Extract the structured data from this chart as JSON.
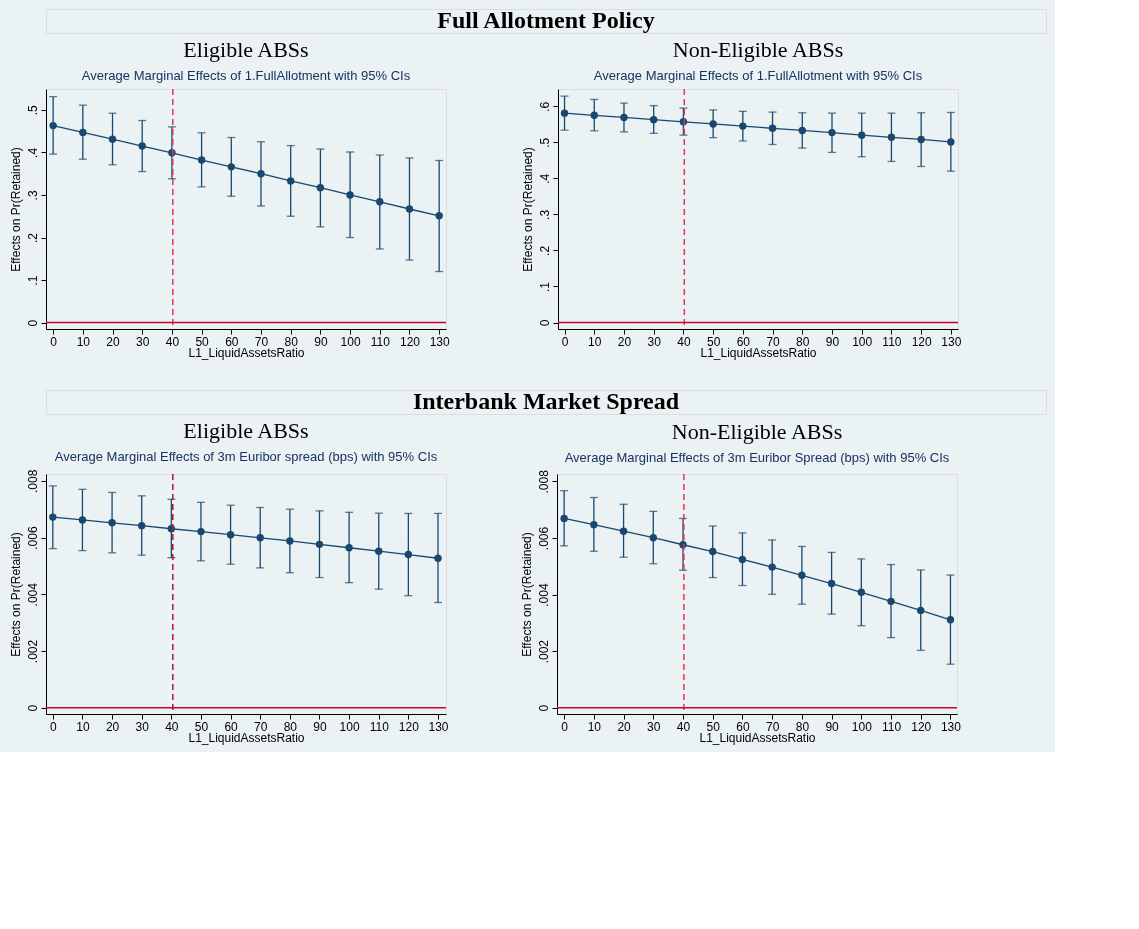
{
  "chart_data": [
    {
      "type": "line",
      "title": "Eligible ABSs",
      "subtitle": "Average Marginal Effects of 1.FullAllotment with 95% CIs",
      "annotations": [
        "Full Allotment Policy"
      ],
      "xlabel": "L1_LiquidAssetsRatio",
      "ylabel": "Effects on Pr(Retained)",
      "x": [
        0,
        10,
        20,
        30,
        40,
        50,
        60,
        70,
        80,
        90,
        100,
        110,
        120,
        130
      ],
      "series": [
        {
          "color": "#1a476f",
          "values": [
            0.463,
            0.447,
            0.431,
            0.415,
            0.399,
            0.382,
            0.366,
            0.35,
            0.333,
            0.317,
            0.3,
            0.284,
            0.267,
            0.251
          ],
          "errors": [
            [
              0.396,
              0.531
            ],
            [
              0.384,
              0.511
            ],
            [
              0.371,
              0.492
            ],
            [
              0.355,
              0.475
            ],
            [
              0.338,
              0.46
            ],
            [
              0.319,
              0.446
            ],
            [
              0.297,
              0.435
            ],
            [
              0.274,
              0.425
            ],
            [
              0.25,
              0.416
            ],
            [
              0.225,
              0.408
            ],
            [
              0.2,
              0.401
            ],
            [
              0.173,
              0.394
            ],
            [
              0.147,
              0.387
            ],
            [
              0.12,
              0.381
            ]
          ]
        }
      ],
      "xlim": [
        -2.4,
        132.3
      ],
      "xticks": [
        0,
        10,
        20,
        30,
        40,
        50,
        60,
        70,
        80,
        90,
        100,
        110,
        120,
        130
      ],
      "ylim": [
        -0.015,
        0.549
      ],
      "yticks": [
        {
          "value": 0,
          "label": "0"
        },
        {
          "value": 0.1,
          "label": ".1"
        },
        {
          "value": 0.2,
          "label": ".2"
        },
        {
          "value": 0.3,
          "label": ".3"
        },
        {
          "value": 0.4,
          "label": ".4"
        },
        {
          "value": 0.5,
          "label": ".5"
        }
      ],
      "ref_lines": [
        {
          "axis": "x",
          "value": 40.3,
          "color": "#e8335a",
          "line_style": "dashed"
        },
        {
          "axis": "y",
          "value": 0,
          "color": "#c10534",
          "line_style": "solid"
        }
      ],
      "grid": "y",
      "marker": "circle",
      "line_style": "solid"
    },
    {
      "type": "line",
      "title": "Non-Eligible ABSs",
      "subtitle": "Average Marginal Effects of 1.FullAllotment with 95% CIs",
      "xlabel": "L1_LiquidAssetsRatio",
      "ylabel": "Effects on Pr(Retained)",
      "x": [
        0,
        10,
        20,
        30,
        40,
        50,
        60,
        70,
        80,
        90,
        100,
        110,
        120,
        130
      ],
      "series": [
        {
          "color": "#1a476f",
          "values": [
            0.581,
            0.575,
            0.569,
            0.563,
            0.557,
            0.551,
            0.545,
            0.539,
            0.533,
            0.527,
            0.52,
            0.514,
            0.508,
            0.501
          ],
          "errors": [
            [
              0.534,
              0.628
            ],
            [
              0.532,
              0.619
            ],
            [
              0.529,
              0.609
            ],
            [
              0.525,
              0.602
            ],
            [
              0.52,
              0.595
            ],
            [
              0.513,
              0.59
            ],
            [
              0.504,
              0.586
            ],
            [
              0.494,
              0.584
            ],
            [
              0.484,
              0.582
            ],
            [
              0.472,
              0.581
            ],
            [
              0.46,
              0.581
            ],
            [
              0.447,
              0.581
            ],
            [
              0.433,
              0.582
            ],
            [
              0.42,
              0.583
            ]
          ]
        }
      ],
      "xlim": [
        -2.2,
        132.4
      ],
      "xticks": [
        0,
        10,
        20,
        30,
        40,
        50,
        60,
        70,
        80,
        90,
        100,
        110,
        120,
        130
      ],
      "ylim": [
        -0.018,
        0.648
      ],
      "yticks": [
        {
          "value": 0,
          "label": "0"
        },
        {
          "value": 0.1,
          "label": ".1"
        },
        {
          "value": 0.2,
          "label": ".2"
        },
        {
          "value": 0.3,
          "label": ".3"
        },
        {
          "value": 0.4,
          "label": ".4"
        },
        {
          "value": 0.5,
          "label": ".5"
        },
        {
          "value": 0.6,
          "label": ".6"
        }
      ],
      "ref_lines": [
        {
          "axis": "x",
          "value": 40.3,
          "color": "#e8335a",
          "line_style": "dashed"
        },
        {
          "axis": "y",
          "value": 0,
          "color": "#c10534",
          "line_style": "solid"
        }
      ],
      "grid": "y",
      "marker": "circle",
      "line_style": "solid"
    },
    {
      "type": "line",
      "title": "Eligible ABSs",
      "subtitle": "Average Marginal Effects of 3m Euribor spread (bps) with 95% CIs",
      "annotations": [
        "Interbank Market Spread"
      ],
      "xlabel": "L1_LiquidAssetsRatio",
      "ylabel": "Effects on Pr(Retained)",
      "x": [
        0,
        10,
        20,
        30,
        40,
        50,
        60,
        70,
        80,
        90,
        100,
        110,
        120,
        130
      ],
      "series": [
        {
          "color": "#1a476f",
          "values": [
            0.00672,
            0.00662,
            0.00652,
            0.00642,
            0.00631,
            0.00621,
            0.0061,
            0.00599,
            0.00588,
            0.00576,
            0.00564,
            0.00552,
            0.0054,
            0.00527
          ],
          "errors": [
            [
              0.00561,
              0.00782
            ],
            [
              0.00554,
              0.0077
            ],
            [
              0.00546,
              0.00759
            ],
            [
              0.00538,
              0.00747
            ],
            [
              0.00529,
              0.00735
            ],
            [
              0.00518,
              0.00724
            ],
            [
              0.00506,
              0.00714
            ],
            [
              0.00493,
              0.00706
            ],
            [
              0.00476,
              0.007
            ],
            [
              0.00459,
              0.00694
            ],
            [
              0.00441,
              0.00689
            ],
            [
              0.00418,
              0.00686
            ],
            [
              0.00395,
              0.00685
            ],
            [
              0.00371,
              0.00685
            ]
          ]
        }
      ],
      "xlim": [
        -2.3,
        132.7
      ],
      "xticks": [
        0,
        10,
        20,
        30,
        40,
        50,
        60,
        70,
        80,
        90,
        100,
        110,
        120,
        130
      ],
      "ylim": [
        -0.00022,
        0.00824
      ],
      "yticks": [
        {
          "value": 0,
          "label": "0"
        },
        {
          "value": 0.002,
          "label": ".002"
        },
        {
          "value": 0.004,
          "label": ".004"
        },
        {
          "value": 0.006,
          "label": ".006"
        },
        {
          "value": 0.008,
          "label": ".008"
        }
      ],
      "ref_lines": [
        {
          "axis": "x",
          "value": 40.5,
          "color": "#b0173a",
          "line_style": "dashed"
        },
        {
          "axis": "y",
          "value": 0,
          "color": "#c10534",
          "line_style": "solid"
        }
      ],
      "grid": "y",
      "marker": "circle",
      "line_style": "solid"
    },
    {
      "type": "line",
      "title": "Non-Eligible ABSs",
      "subtitle": "Average Marginal Effects of 3m Euribor Spread (bps) with 95% CIs",
      "xlabel": "L1_LiquidAssetsRatio",
      "ylabel": "Effects on Pr(Retained)",
      "x": [
        0,
        10,
        20,
        30,
        40,
        50,
        60,
        70,
        80,
        90,
        100,
        110,
        120,
        130
      ],
      "series": [
        {
          "color": "#1a476f",
          "values": [
            0.00669,
            0.00647,
            0.00624,
            0.00601,
            0.00576,
            0.00552,
            0.00524,
            0.00497,
            0.00468,
            0.00439,
            0.00408,
            0.00376,
            0.00344,
            0.00311
          ],
          "errors": [
            [
              0.00572,
              0.00767
            ],
            [
              0.00553,
              0.00743
            ],
            [
              0.00532,
              0.00719
            ],
            [
              0.00509,
              0.00694
            ],
            [
              0.00486,
              0.00669
            ],
            [
              0.0046,
              0.00642
            ],
            [
              0.00432,
              0.00618
            ],
            [
              0.00401,
              0.00593
            ],
            [
              0.00366,
              0.0057
            ],
            [
              0.00331,
              0.00549
            ],
            [
              0.0029,
              0.00526
            ],
            [
              0.00248,
              0.00506
            ],
            [
              0.00203,
              0.00487
            ],
            [
              0.00154,
              0.00469
            ]
          ]
        }
      ],
      "xlim": [
        -2.4,
        132.2
      ],
      "xticks": [
        0,
        10,
        20,
        30,
        40,
        50,
        60,
        70,
        80,
        90,
        100,
        110,
        120,
        130
      ],
      "ylim": [
        -0.00022,
        0.00826
      ],
      "yticks": [
        {
          "value": 0,
          "label": "0"
        },
        {
          "value": 0.002,
          "label": ".002"
        },
        {
          "value": 0.004,
          "label": ".004"
        },
        {
          "value": 0.006,
          "label": ".006"
        },
        {
          "value": 0.008,
          "label": ".008"
        }
      ],
      "ref_lines": [
        {
          "axis": "x",
          "value": 40.3,
          "color": "#e8335a",
          "line_style": "dashed"
        },
        {
          "axis": "y",
          "value": 0,
          "color": "#c10534",
          "line_style": "solid"
        }
      ],
      "grid": "y",
      "marker": "circle",
      "line_style": "solid"
    }
  ]
}
